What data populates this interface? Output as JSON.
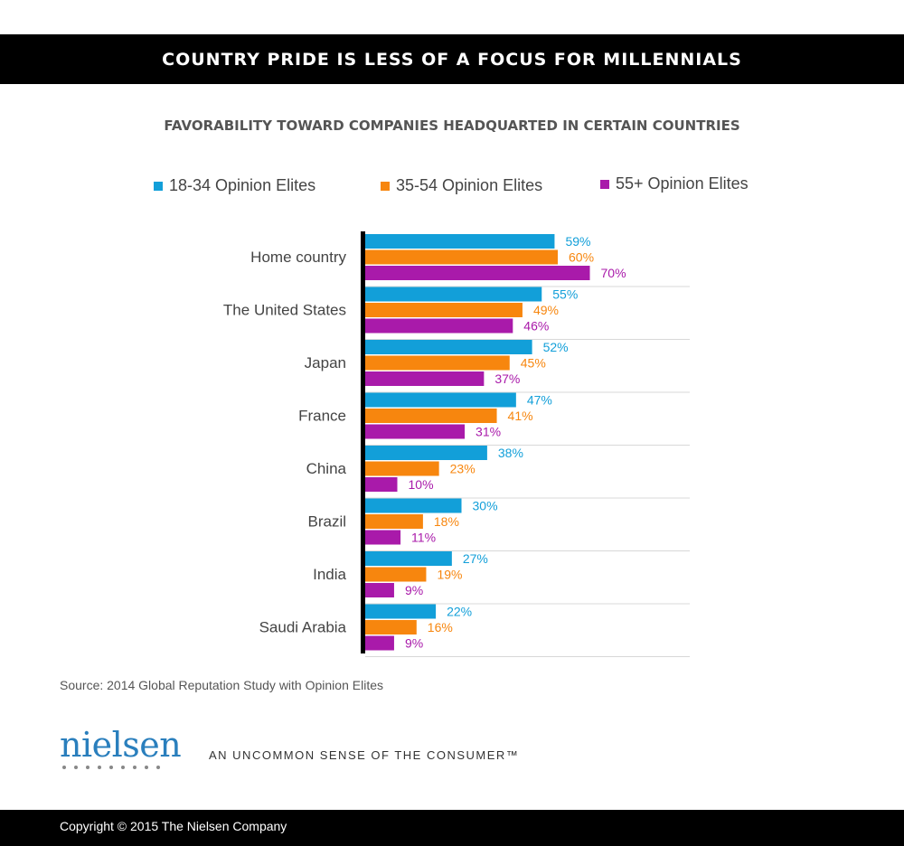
{
  "header": {
    "title": "COUNTRY PRIDE IS LESS OF A FOCUS FOR MILLENNIALS"
  },
  "chart_data": {
    "type": "bar",
    "orientation": "horizontal",
    "title": "FAVORABILITY TOWARD COMPANIES HEADQUARTED IN CERTAIN COUNTRIES",
    "categories": [
      "Home country",
      "The United States",
      "Japan",
      "France",
      "China",
      "Brazil",
      "India",
      "Saudi Arabia"
    ],
    "series": [
      {
        "name": "18-34 Opinion Elites",
        "color": "#129fd9",
        "values": [
          59,
          55,
          52,
          47,
          38,
          30,
          27,
          22
        ],
        "labels": [
          "59%",
          "55%",
          "52%",
          "47%",
          "38%",
          "30%",
          "27%",
          "22%"
        ]
      },
      {
        "name": "35-54 Opinion Elites",
        "color": "#f7860e",
        "values": [
          60,
          49,
          45,
          41,
          23,
          18,
          19,
          16
        ],
        "labels": [
          "60%",
          "49%",
          "45%",
          "41%",
          "23%",
          "18%",
          "19%",
          "16%"
        ]
      },
      {
        "name": "55+ Opinion Elites",
        "color": "#a91aaa",
        "values": [
          70,
          46,
          37,
          31,
          10,
          11,
          9,
          9
        ],
        "labels": [
          "70%",
          "46%",
          "37%",
          "31%",
          "10%",
          "11%",
          "9%",
          "9%"
        ]
      }
    ],
    "xlim": [
      0,
      100
    ],
    "grid": false,
    "legend": "top"
  },
  "source": "Source: 2014 Global Reputation Study with Opinion Elites",
  "logo": {
    "name": "nielsen-logo",
    "text": "nielsen"
  },
  "tagline": "AN UNCOMMON SENSE OF THE CONSUMER™",
  "footer": {
    "copyright": "Copyright © 2015 The Nielsen Company"
  }
}
